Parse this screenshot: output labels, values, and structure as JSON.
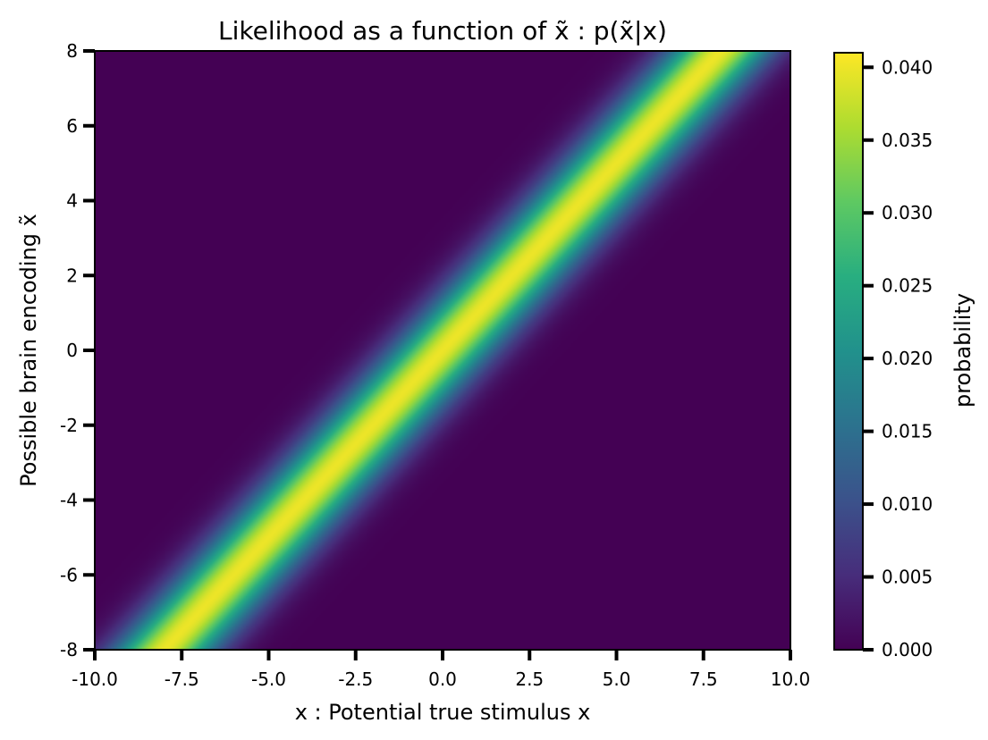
{
  "chart_data": {
    "type": "heatmap",
    "title": "Likelihood as a function of x̃ : p(x̃|x)",
    "xlabel": "x : Potential true stimulus x",
    "ylabel": "Possible brain encoding x̃",
    "xlim": [
      -10.0,
      10.0
    ],
    "ylim": [
      -8,
      8
    ],
    "x_ticks": [
      -10.0,
      -7.5,
      -5.0,
      -2.5,
      0.0,
      2.5,
      5.0,
      7.5,
      10.0
    ],
    "x_tick_labels": [
      "-10.0",
      "-7.5",
      "-5.0",
      "-2.5",
      "0.0",
      "2.5",
      "5.0",
      "7.5",
      "10.0"
    ],
    "y_ticks": [
      -8,
      -6,
      -4,
      -2,
      0,
      2,
      4,
      6,
      8
    ],
    "y_tick_labels": [
      "-8",
      "-6",
      "-4",
      "-2",
      "0",
      "2",
      "4",
      "6",
      "8"
    ],
    "function": "gaussian likelihood p(x̃|x) centered on x̃ = x",
    "peak_value": 0.04,
    "colorbar": {
      "label": "probability",
      "colormap": "viridis",
      "range": [
        0.0,
        0.041
      ],
      "ticks": [
        0.0,
        0.005,
        0.01,
        0.015,
        0.02,
        0.025,
        0.03,
        0.035,
        0.04
      ],
      "tick_labels": [
        "0.000",
        "0.005",
        "0.010",
        "0.015",
        "0.020",
        "0.025",
        "0.030",
        "0.035",
        "0.040"
      ]
    }
  }
}
